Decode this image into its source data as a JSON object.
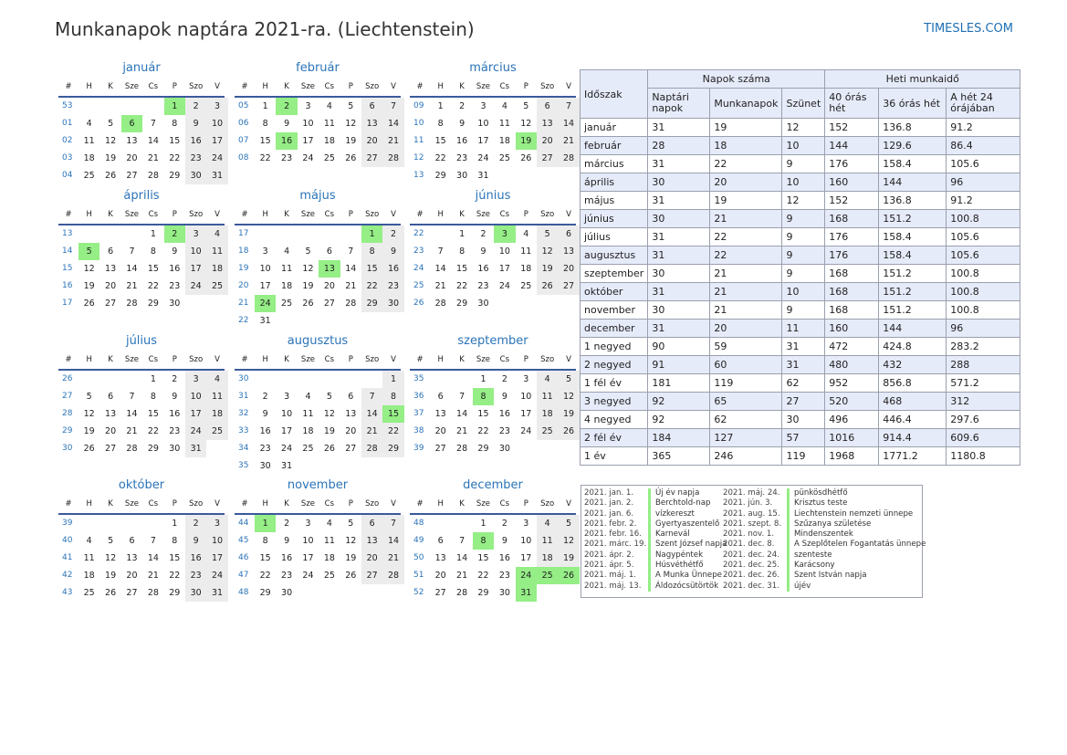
{
  "header": {
    "title": "Munkanapok naptára 2021-ra. (Liechtenstein)",
    "site": "TIMESLES.COM"
  },
  "calendar": {
    "weekday_headers": [
      "#",
      "H",
      "K",
      "Sze",
      "Cs",
      "P",
      "Szo",
      "V"
    ],
    "months": [
      {
        "name": "január",
        "weeks": [
          "53",
          "01",
          "02",
          "03",
          "04"
        ],
        "startDow": 4,
        "days": 31,
        "holidays": [
          1,
          6
        ],
        "extra_nonwork": [
          2
        ]
      },
      {
        "name": "február",
        "weeks": [
          "05",
          "06",
          "07",
          "08"
        ],
        "startDow": 0,
        "days": 28,
        "holidays": [
          2,
          16
        ],
        "extra_nonwork": []
      },
      {
        "name": "március",
        "weeks": [
          "09",
          "10",
          "11",
          "12",
          "13"
        ],
        "startDow": 0,
        "days": 31,
        "holidays": [
          19
        ],
        "extra_nonwork": []
      },
      {
        "name": "április",
        "weeks": [
          "13",
          "14",
          "15",
          "16",
          "17"
        ],
        "startDow": 3,
        "days": 30,
        "holidays": [
          2,
          5
        ],
        "extra_nonwork": []
      },
      {
        "name": "május",
        "weeks": [
          "17",
          "18",
          "19",
          "20",
          "21",
          "22"
        ],
        "startDow": 5,
        "days": 31,
        "holidays": [
          1,
          13,
          24
        ],
        "extra_nonwork": []
      },
      {
        "name": "június",
        "weeks": [
          "22",
          "23",
          "24",
          "25",
          "26"
        ],
        "startDow": 1,
        "days": 30,
        "holidays": [
          3
        ],
        "extra_nonwork": []
      },
      {
        "name": "július",
        "weeks": [
          "26",
          "27",
          "28",
          "29",
          "30"
        ],
        "startDow": 3,
        "days": 31,
        "holidays": [],
        "extra_nonwork": []
      },
      {
        "name": "augusztus",
        "weeks": [
          "30",
          "31",
          "32",
          "33",
          "34",
          "35"
        ],
        "startDow": 6,
        "days": 31,
        "holidays": [
          15
        ],
        "extra_nonwork": []
      },
      {
        "name": "szeptember",
        "weeks": [
          "35",
          "36",
          "37",
          "38",
          "39"
        ],
        "startDow": 2,
        "days": 30,
        "holidays": [
          8
        ],
        "extra_nonwork": []
      },
      {
        "name": "október",
        "weeks": [
          "39",
          "40",
          "41",
          "42",
          "43"
        ],
        "startDow": 4,
        "days": 31,
        "holidays": [],
        "extra_nonwork": []
      },
      {
        "name": "november",
        "weeks": [
          "44",
          "45",
          "46",
          "47",
          "48"
        ],
        "startDow": 0,
        "days": 30,
        "holidays": [
          1
        ],
        "extra_nonwork": []
      },
      {
        "name": "december",
        "weeks": [
          "48",
          "49",
          "50",
          "51",
          "52"
        ],
        "startDow": 2,
        "days": 31,
        "holidays": [
          8,
          24,
          25,
          26,
          31
        ],
        "extra_nonwork": []
      }
    ]
  },
  "stats": {
    "col_period": "Időszak",
    "group_days": "Napok száma",
    "group_hours": "Heti munkaidő",
    "col_calendar": "Naptári napok",
    "col_workdays": "Munkanapok",
    "col_off": "Szünet",
    "col_h40": "40 órás hét",
    "col_h36": "36 órás hét",
    "col_h24": "A hét 24 órájában",
    "rows": [
      [
        "január",
        "31",
        "19",
        "12",
        "152",
        "136.8",
        "91.2"
      ],
      [
        "február",
        "28",
        "18",
        "10",
        "144",
        "129.6",
        "86.4"
      ],
      [
        "március",
        "31",
        "22",
        "9",
        "176",
        "158.4",
        "105.6"
      ],
      [
        "április",
        "30",
        "20",
        "10",
        "160",
        "144",
        "96"
      ],
      [
        "május",
        "31",
        "19",
        "12",
        "152",
        "136.8",
        "91.2"
      ],
      [
        "június",
        "30",
        "21",
        "9",
        "168",
        "151.2",
        "100.8"
      ],
      [
        "július",
        "31",
        "22",
        "9",
        "176",
        "158.4",
        "105.6"
      ],
      [
        "augusztus",
        "31",
        "22",
        "9",
        "176",
        "158.4",
        "105.6"
      ],
      [
        "szeptember",
        "30",
        "21",
        "9",
        "168",
        "151.2",
        "100.8"
      ],
      [
        "október",
        "31",
        "21",
        "10",
        "168",
        "151.2",
        "100.8"
      ],
      [
        "november",
        "30",
        "21",
        "9",
        "168",
        "151.2",
        "100.8"
      ],
      [
        "december",
        "31",
        "20",
        "11",
        "160",
        "144",
        "96"
      ],
      [
        "1 negyed",
        "90",
        "59",
        "31",
        "472",
        "424.8",
        "283.2"
      ],
      [
        "2 negyed",
        "91",
        "60",
        "31",
        "480",
        "432",
        "288"
      ],
      [
        "1 fél év",
        "181",
        "119",
        "62",
        "952",
        "856.8",
        "571.2"
      ],
      [
        "3 negyed",
        "92",
        "65",
        "27",
        "520",
        "468",
        "312"
      ],
      [
        "4 negyed",
        "92",
        "62",
        "30",
        "496",
        "446.4",
        "297.6"
      ],
      [
        "2 fél év",
        "184",
        "127",
        "57",
        "1016",
        "914.4",
        "609.6"
      ],
      [
        "1 év",
        "365",
        "246",
        "119",
        "1968",
        "1771.2",
        "1180.8"
      ]
    ]
  },
  "holidays_list": {
    "left": [
      {
        "date": "2021. jan. 1.",
        "name": "Új év napja"
      },
      {
        "date": "2021. jan. 2.",
        "name": "Berchtold-nap"
      },
      {
        "date": "2021. jan. 6.",
        "name": "vízkereszt"
      },
      {
        "date": "2021. febr. 2.",
        "name": "Gyertyaszentelő"
      },
      {
        "date": "2021. febr. 16.",
        "name": "Karnevál"
      },
      {
        "date": "2021. márc. 19.",
        "name": "Szent József napja"
      },
      {
        "date": "2021. ápr. 2.",
        "name": "Nagypéntek"
      },
      {
        "date": "2021. ápr. 5.",
        "name": "Húsvéthétfő"
      },
      {
        "date": "2021. máj. 1.",
        "name": "A Munka Ünnepe"
      },
      {
        "date": "2021. máj. 13.",
        "name": "Áldozócsütörtök"
      }
    ],
    "right": [
      {
        "date": "2021. máj. 24.",
        "name": "pünkösdhétfő"
      },
      {
        "date": "2021. jún. 3.",
        "name": "Krisztus teste"
      },
      {
        "date": "2021. aug. 15.",
        "name": "Liechtenstein nemzeti ünnepe"
      },
      {
        "date": "2021. szept. 8.",
        "name": "Szűzanya születése"
      },
      {
        "date": "2021. nov. 1.",
        "name": "Mindenszentek"
      },
      {
        "date": "2021. dec. 8.",
        "name": "A Szeplőtelen Fogantatás ünnepe"
      },
      {
        "date": "2021. dec. 24.",
        "name": "szenteste"
      },
      {
        "date": "2021. dec. 25.",
        "name": "Karácsony"
      },
      {
        "date": "2021. dec. 26.",
        "name": "Szent István napja"
      },
      {
        "date": "2021. dec. 31.",
        "name": "újév"
      }
    ]
  },
  "colors": {
    "accent": "#2b74b8",
    "holiday": "#95ee86",
    "weekend": "#ececec",
    "header_fill": "#e6ebfa"
  }
}
